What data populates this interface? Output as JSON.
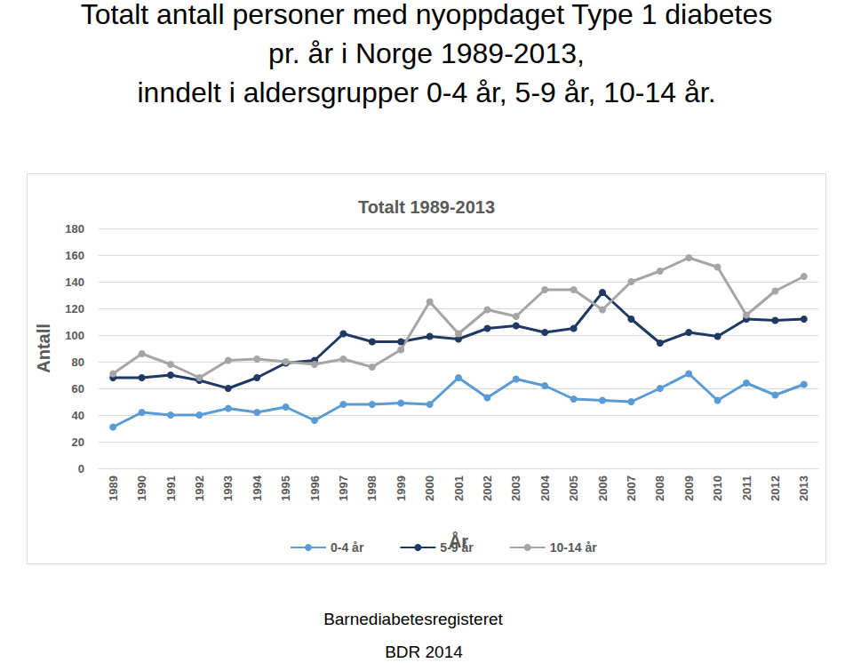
{
  "page": {
    "heading": [
      "Totalt antall personer med nyoppdaget Type 1 diabetes",
      "pr. år i Norge 1989-2013,",
      "inndelt i aldersgrupper 0-4 år, 5-9 år, 10-14 år."
    ],
    "footer": [
      "Barnediabetesregisteret",
      "BDR 2014"
    ]
  },
  "chart_data": {
    "type": "line",
    "title": "Totalt 1989-2013",
    "x_label": "År",
    "y_label": "Antall",
    "categories": [
      "1989",
      "1990",
      "1991",
      "1992",
      "1993",
      "1994",
      "1995",
      "1996",
      "1997",
      "1998",
      "1999",
      "2000",
      "2001",
      "2002",
      "2003",
      "2004",
      "2005",
      "2006",
      "2007",
      "2008",
      "2009",
      "2010",
      "2011",
      "2012",
      "2013"
    ],
    "series": [
      {
        "name": "0-4 år",
        "color": "#5b9bd5",
        "marker": "circle",
        "values": [
          31,
          42,
          40,
          40,
          45,
          42,
          46,
          36,
          48,
          48,
          49,
          48,
          68,
          53,
          67,
          62,
          52,
          51,
          50,
          60,
          71,
          51,
          64,
          55,
          63
        ]
      },
      {
        "name": "5-9 år",
        "color": "#1f3864",
        "marker": "circle",
        "values": [
          68,
          68,
          70,
          66,
          60,
          68,
          79,
          81,
          101,
          95,
          95,
          99,
          97,
          105,
          107,
          102,
          105,
          132,
          112,
          94,
          102,
          99,
          112,
          111,
          112
        ]
      },
      {
        "name": "10-14 år",
        "color": "#a5a5a5",
        "marker": "circle",
        "values": [
          71,
          86,
          78,
          68,
          81,
          82,
          80,
          78,
          82,
          76,
          89,
          125,
          101,
          119,
          114,
          134,
          134,
          119,
          140,
          148,
          158,
          151,
          115,
          133,
          144
        ]
      }
    ],
    "ylim": [
      0,
      180
    ],
    "yticks": [
      0,
      20,
      40,
      60,
      80,
      100,
      120,
      140,
      160,
      180
    ],
    "grid": true,
    "legend": "bottom"
  }
}
